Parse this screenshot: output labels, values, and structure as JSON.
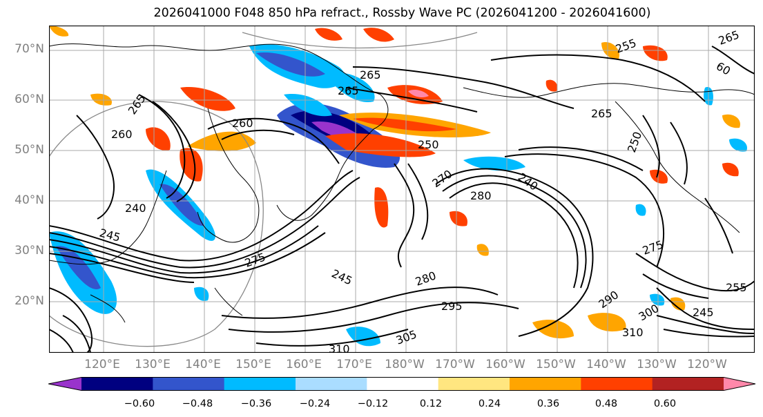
{
  "title": "2026041000 F048 850 hPa refract., Rossby Wave PC (2026041200 - 2026041600)",
  "lat_labels": [
    "70°N",
    "60°N",
    "50°N",
    "40°N",
    "30°N",
    "20°N"
  ],
  "lon_labels": [
    "120°E",
    "130°E",
    "140°E",
    "150°E",
    "160°E",
    "170°E",
    "180°W",
    "170°W",
    "160°W",
    "150°W",
    "140°W",
    "130°W",
    "120°W"
  ],
  "colorbar": {
    "ticks": [
      "−0.60",
      "−0.48",
      "−0.36",
      "−0.24",
      "−0.12",
      "0.12",
      "0.24",
      "0.36",
      "0.48",
      "0.60"
    ],
    "colors": [
      "#9933cc",
      "#000080",
      "#3355cc",
      "#00bbff",
      "#aaddff",
      "#ffffff",
      "#ffe680",
      "#ffa500",
      "#ff4000",
      "#b22222",
      "#ff88aa"
    ]
  },
  "contour_labels": {
    "c1": "265",
    "c2": "265",
    "c3": "260",
    "c4": "260",
    "c5": "250",
    "c6": "265",
    "c7": "250",
    "c8": "240",
    "c9": "270",
    "c10": "280",
    "c11": "280",
    "c12": "295",
    "c13": "305",
    "c14": "310",
    "c15": "290",
    "c16": "300",
    "c17": "310",
    "c18": "245",
    "c19": "255",
    "c20": "275",
    "c21": "240",
    "c22": "245",
    "c23": "265",
    "c24": "255",
    "c25": "265",
    "c26": "60",
    "c27": "245",
    "c28": "275"
  }
}
